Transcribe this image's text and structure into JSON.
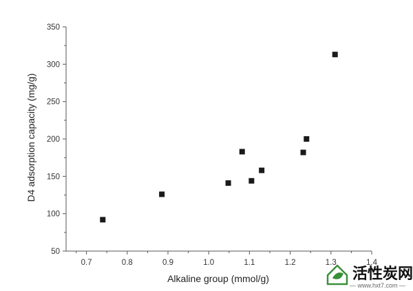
{
  "chart_data": {
    "type": "scatter",
    "title": "",
    "xlabel": "Alkaline group (mmol/g)",
    "ylabel": "D4 adsorption capacity (mg/g)",
    "xlim": [
      0.65,
      1.4
    ],
    "ylim": [
      50,
      350
    ],
    "xticks": [
      0.7,
      0.8,
      0.9,
      1.0,
      1.1,
      1.2,
      1.3,
      1.4
    ],
    "xtick_labels": [
      "0.7",
      "0.8",
      "0.9",
      "1.0",
      "1.1",
      "1.2",
      "1.3",
      "1.4"
    ],
    "yticks": [
      50,
      100,
      150,
      200,
      250,
      300,
      350
    ],
    "ytick_labels": [
      "50",
      "100",
      "150",
      "200",
      "250",
      "300",
      "350"
    ],
    "grid": false,
    "marker": "square",
    "marker_color": "#1a1a1a",
    "axis_color": "#555555",
    "points": [
      {
        "x": 0.74,
        "y": 92
      },
      {
        "x": 0.885,
        "y": 126
      },
      {
        "x": 1.048,
        "y": 141
      },
      {
        "x": 1.082,
        "y": 183
      },
      {
        "x": 1.105,
        "y": 144
      },
      {
        "x": 1.13,
        "y": 158
      },
      {
        "x": 1.232,
        "y": 182
      },
      {
        "x": 1.24,
        "y": 200
      },
      {
        "x": 1.31,
        "y": 313
      }
    ]
  },
  "watermark": {
    "text": "活性炭网",
    "url": "— www.hxt7.com —",
    "logo_icon": "house-leaf-logo",
    "logo_color": "#3a8f3a"
  }
}
